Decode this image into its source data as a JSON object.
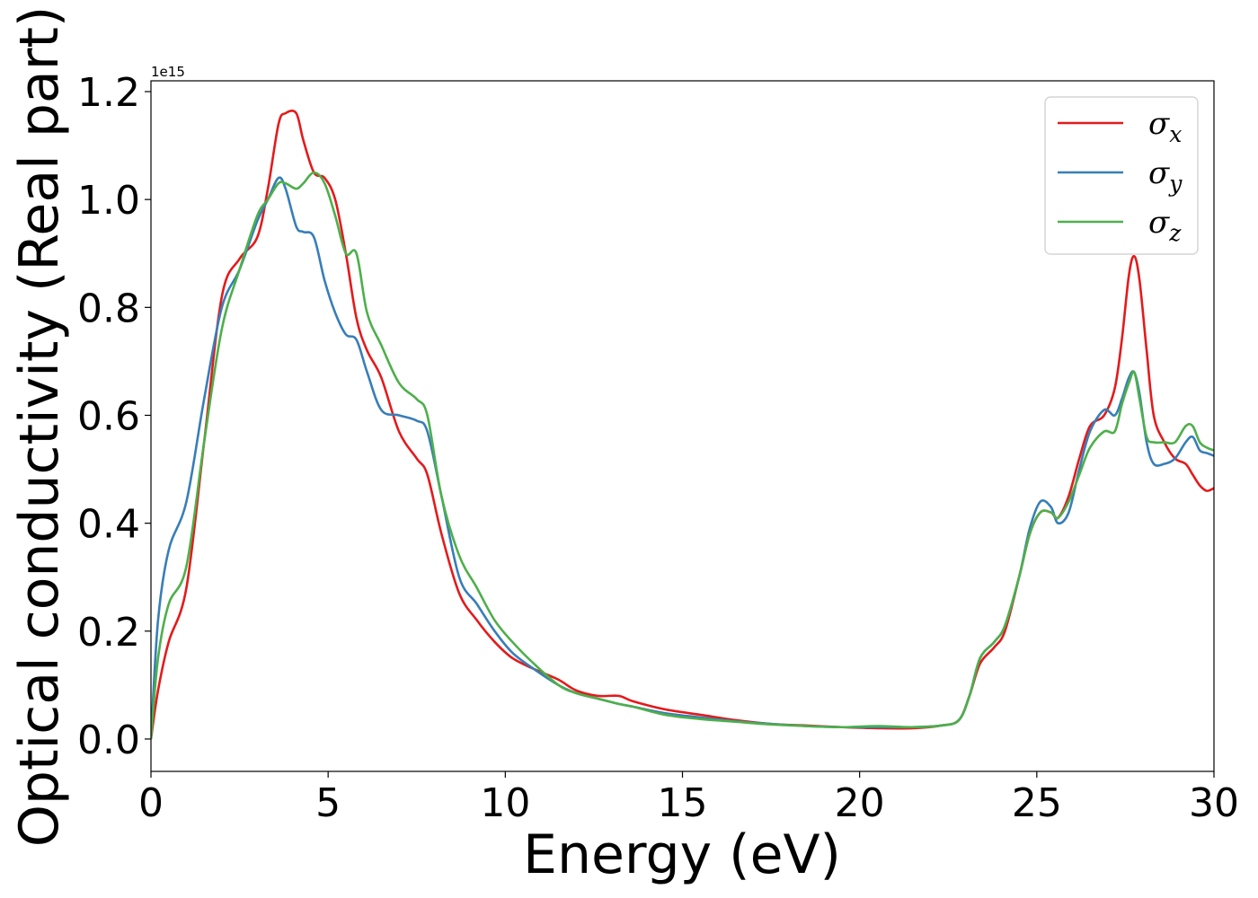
{
  "chart_data": {
    "type": "line",
    "title": "",
    "xlabel": "Energy (eV)",
    "ylabel": "Optical conductivity (Real part)",
    "y_offset_text": "1e15",
    "y_scale_factor": 1000000000000000.0,
    "xlim": [
      0,
      30
    ],
    "ylim": [
      -0.06,
      1.22
    ],
    "xticks": [
      0,
      5,
      10,
      15,
      20,
      25,
      30
    ],
    "yticks": [
      0.0,
      0.2,
      0.4,
      0.6,
      0.8,
      1.0,
      1.2
    ],
    "ytick_labels": [
      "0.0",
      "0.2",
      "0.4",
      "0.6",
      "0.8",
      "1.0",
      "1.2"
    ],
    "grid": false,
    "legend_position": "top-right",
    "series": [
      {
        "name": "σx",
        "symbol": "σ",
        "subscript": "x",
        "color": "#e41a1c",
        "x": [
          0,
          0.2,
          0.5,
          1.0,
          1.5,
          2.0,
          2.5,
          3.0,
          3.3,
          3.6,
          3.8,
          4.1,
          4.3,
          4.6,
          4.9,
          5.2,
          5.5,
          5.8,
          6.1,
          6.5,
          7.0,
          7.5,
          7.8,
          8.2,
          8.7,
          9.2,
          9.7,
          10.2,
          10.8,
          11.5,
          12.0,
          12.6,
          13.2,
          13.6,
          14.5,
          15.5,
          16.5,
          17.5,
          18.5,
          19.5,
          20.5,
          21.5,
          22.3,
          22.8,
          23.1,
          23.4,
          23.8,
          24.1,
          24.5,
          24.8,
          25.1,
          25.4,
          25.6,
          25.9,
          26.2,
          26.5,
          26.9,
          27.2,
          27.4,
          27.6,
          27.75,
          27.9,
          28.1,
          28.3,
          28.6,
          28.9,
          29.2,
          29.4,
          29.6,
          29.8,
          30.0
        ],
        "y": [
          0.0,
          0.09,
          0.18,
          0.28,
          0.55,
          0.82,
          0.89,
          0.93,
          1.02,
          1.14,
          1.16,
          1.16,
          1.11,
          1.05,
          1.04,
          1.0,
          0.9,
          0.78,
          0.72,
          0.67,
          0.57,
          0.52,
          0.49,
          0.38,
          0.27,
          0.22,
          0.18,
          0.15,
          0.13,
          0.11,
          0.09,
          0.08,
          0.08,
          0.07,
          0.055,
          0.045,
          0.035,
          0.028,
          0.025,
          0.022,
          0.02,
          0.02,
          0.025,
          0.035,
          0.08,
          0.14,
          0.17,
          0.2,
          0.3,
          0.38,
          0.42,
          0.42,
          0.41,
          0.45,
          0.52,
          0.58,
          0.6,
          0.65,
          0.74,
          0.86,
          0.895,
          0.85,
          0.72,
          0.6,
          0.55,
          0.52,
          0.51,
          0.49,
          0.47,
          0.46,
          0.465
        ]
      },
      {
        "name": "σy",
        "symbol": "σ",
        "subscript": "y",
        "color": "#377eb8",
        "x": [
          0,
          0.2,
          0.5,
          1.0,
          1.5,
          2.0,
          2.5,
          3.0,
          3.3,
          3.6,
          3.8,
          4.1,
          4.3,
          4.6,
          4.9,
          5.2,
          5.5,
          5.8,
          6.1,
          6.5,
          7.0,
          7.5,
          7.8,
          8.2,
          8.7,
          9.2,
          9.7,
          10.2,
          10.8,
          11.5,
          12.0,
          12.6,
          13.2,
          13.6,
          14.5,
          15.5,
          16.5,
          17.5,
          18.5,
          19.5,
          20.5,
          21.5,
          22.3,
          22.8,
          23.1,
          23.4,
          23.8,
          24.1,
          24.5,
          24.8,
          25.1,
          25.4,
          25.6,
          25.9,
          26.2,
          26.5,
          26.9,
          27.2,
          27.4,
          27.6,
          27.75,
          27.9,
          28.1,
          28.3,
          28.6,
          28.9,
          29.2,
          29.4,
          29.6,
          29.8,
          30.0
        ],
        "y": [
          0.0,
          0.22,
          0.35,
          0.44,
          0.63,
          0.8,
          0.87,
          0.96,
          1.0,
          1.04,
          1.02,
          0.95,
          0.94,
          0.93,
          0.85,
          0.79,
          0.75,
          0.74,
          0.68,
          0.61,
          0.6,
          0.59,
          0.57,
          0.45,
          0.3,
          0.25,
          0.2,
          0.16,
          0.13,
          0.1,
          0.085,
          0.075,
          0.065,
          0.06,
          0.048,
          0.04,
          0.033,
          0.028,
          0.024,
          0.022,
          0.022,
          0.022,
          0.025,
          0.035,
          0.08,
          0.15,
          0.18,
          0.21,
          0.3,
          0.39,
          0.44,
          0.43,
          0.4,
          0.42,
          0.5,
          0.57,
          0.61,
          0.6,
          0.63,
          0.67,
          0.68,
          0.64,
          0.55,
          0.51,
          0.51,
          0.52,
          0.55,
          0.56,
          0.535,
          0.53,
          0.525
        ]
      },
      {
        "name": "σz",
        "symbol": "σ",
        "subscript": "z",
        "color": "#4daf4a",
        "x": [
          0,
          0.2,
          0.5,
          1.0,
          1.5,
          2.0,
          2.5,
          3.0,
          3.3,
          3.6,
          3.8,
          4.1,
          4.3,
          4.6,
          4.9,
          5.2,
          5.5,
          5.8,
          6.1,
          6.5,
          7.0,
          7.5,
          7.8,
          8.2,
          8.7,
          9.2,
          9.7,
          10.2,
          10.8,
          11.5,
          12.0,
          12.6,
          13.2,
          13.6,
          14.5,
          15.5,
          16.5,
          17.5,
          18.5,
          19.5,
          20.5,
          21.5,
          22.3,
          22.8,
          23.1,
          23.4,
          23.8,
          24.1,
          24.5,
          24.8,
          25.1,
          25.4,
          25.6,
          25.9,
          26.2,
          26.5,
          26.9,
          27.2,
          27.4,
          27.6,
          27.75,
          27.9,
          28.1,
          28.3,
          28.6,
          28.9,
          29.2,
          29.4,
          29.6,
          29.8,
          30.0
        ],
        "y": [
          0.0,
          0.15,
          0.25,
          0.32,
          0.55,
          0.76,
          0.87,
          0.97,
          1.0,
          1.03,
          1.03,
          1.02,
          1.03,
          1.05,
          1.03,
          0.97,
          0.9,
          0.9,
          0.79,
          0.73,
          0.66,
          0.63,
          0.6,
          0.45,
          0.34,
          0.28,
          0.22,
          0.18,
          0.14,
          0.1,
          0.085,
          0.075,
          0.065,
          0.06,
          0.045,
          0.037,
          0.032,
          0.027,
          0.024,
          0.022,
          0.024,
          0.022,
          0.025,
          0.035,
          0.08,
          0.15,
          0.18,
          0.21,
          0.3,
          0.38,
          0.42,
          0.42,
          0.41,
          0.44,
          0.49,
          0.54,
          0.57,
          0.57,
          0.62,
          0.66,
          0.68,
          0.63,
          0.56,
          0.55,
          0.55,
          0.55,
          0.58,
          0.58,
          0.55,
          0.54,
          0.535
        ]
      }
    ]
  }
}
